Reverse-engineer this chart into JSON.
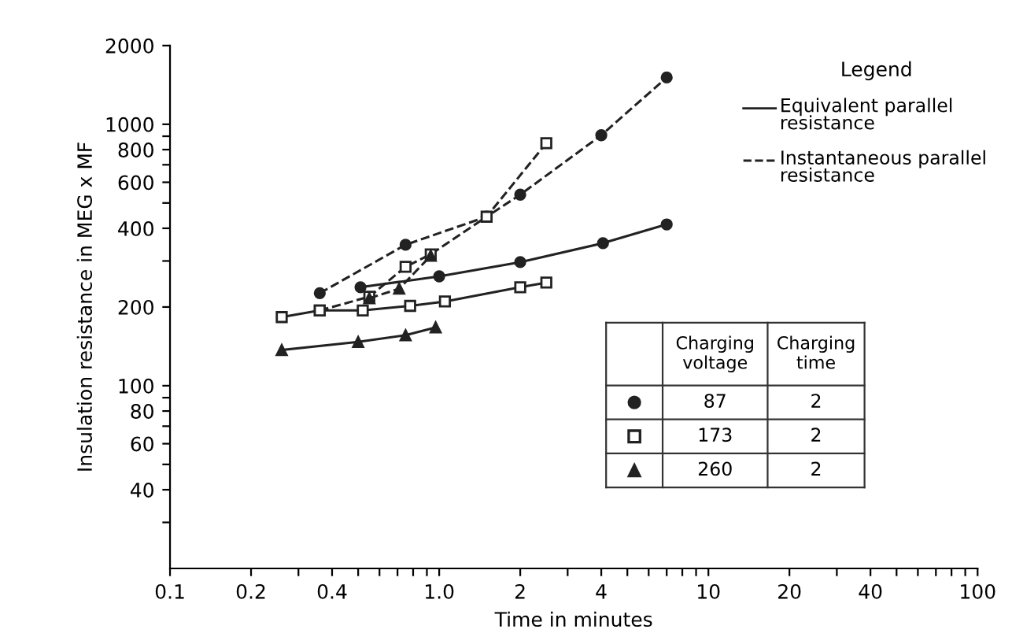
{
  "chart_data": {
    "type": "line",
    "xlabel": "Time in minutes",
    "ylabel": "Insulation resistance in MEG x MF",
    "legend_title": "Legend",
    "log": "xy",
    "grid": false,
    "legend": "right",
    "xlim": [
      0.1,
      100
    ],
    "ylim": [
      20,
      2000
    ],
    "xticks": [
      0.1,
      0.2,
      {
        "value": 0.3,
        "label": null
      },
      0.4,
      {
        "value": 0.5,
        "label": null
      },
      {
        "value": 0.6,
        "label": null
      },
      {
        "value": 0.7,
        "label": null
      },
      {
        "value": 0.8,
        "label": null
      },
      {
        "value": 0.9,
        "label": null
      },
      {
        "value": 1,
        "label": "1.0"
      },
      2,
      {
        "value": 3,
        "label": null
      },
      4,
      {
        "value": 5,
        "label": null
      },
      {
        "value": 6,
        "label": null
      },
      {
        "value": 7,
        "label": null
      },
      {
        "value": 8,
        "label": null
      },
      {
        "value": 9,
        "label": null
      },
      10,
      20,
      {
        "value": 30,
        "label": null
      },
      40,
      {
        "value": 50,
        "label": null
      },
      {
        "value": 60,
        "label": null
      },
      {
        "value": 70,
        "label": null
      },
      {
        "value": 80,
        "label": null
      },
      {
        "value": 90,
        "label": null
      },
      100
    ],
    "yticks": [
      {
        "value": 30,
        "label": null
      },
      40,
      {
        "value": 50,
        "label": null
      },
      60,
      {
        "value": 70,
        "label": null
      },
      80,
      {
        "value": 90,
        "label": null
      },
      100,
      200,
      {
        "value": 300,
        "label": null
      },
      400,
      {
        "value": 500,
        "label": null
      },
      600,
      {
        "value": 700,
        "label": null
      },
      800,
      {
        "value": 900,
        "label": null
      },
      1000,
      2000
    ],
    "annotations": [
      "Equivalent parallel\nresistance",
      "Instantaneous parallel\nresistance",
      "Charging\nvoltage",
      "Charging\ntime",
      "2",
      "2",
      "2"
    ],
    "series": [
      {
        "name": "87",
        "color": "#222222",
        "marker": "circle",
        "line_style": "solid",
        "x": [
          0.51,
          1.0,
          2.0,
          4.06,
          7.0
        ],
        "values": [
          238,
          262,
          297,
          351,
          414
        ]
      },
      {
        "name": "173",
        "color": "#222222",
        "marker": "square",
        "line_style": "solid",
        "x": [
          0.26,
          0.36,
          0.52,
          0.78,
          1.05,
          2.0,
          2.5
        ],
        "values": [
          183,
          194,
          194,
          202,
          210,
          238,
          248
        ]
      },
      {
        "name": "260",
        "color": "#222222",
        "marker": "triangle",
        "line_style": "solid",
        "x": [
          0.26,
          0.5,
          0.75,
          0.97
        ],
        "values": [
          137,
          147,
          156,
          167
        ]
      },
      {
        "color": "#222222",
        "marker": "circle",
        "line_style": "dashed",
        "x": [
          0.36,
          0.75,
          1.5,
          2.0,
          4.0,
          7.0
        ],
        "values": [
          226,
          346,
          443,
          538,
          908,
          1510
        ]
      },
      {
        "color": "#222222",
        "marker": "square",
        "line_style": "dashed",
        "x": [
          0.36,
          0.55,
          0.75,
          0.93,
          1.5,
          2.5
        ],
        "values": [
          194,
          219,
          285,
          318,
          443,
          847
        ]
      },
      {
        "color": "#222222",
        "marker": "triangle",
        "line_style": "dashed",
        "x": [
          0.55,
          0.71,
          0.93
        ],
        "values": [
          216,
          235,
          314
        ]
      }
    ]
  }
}
